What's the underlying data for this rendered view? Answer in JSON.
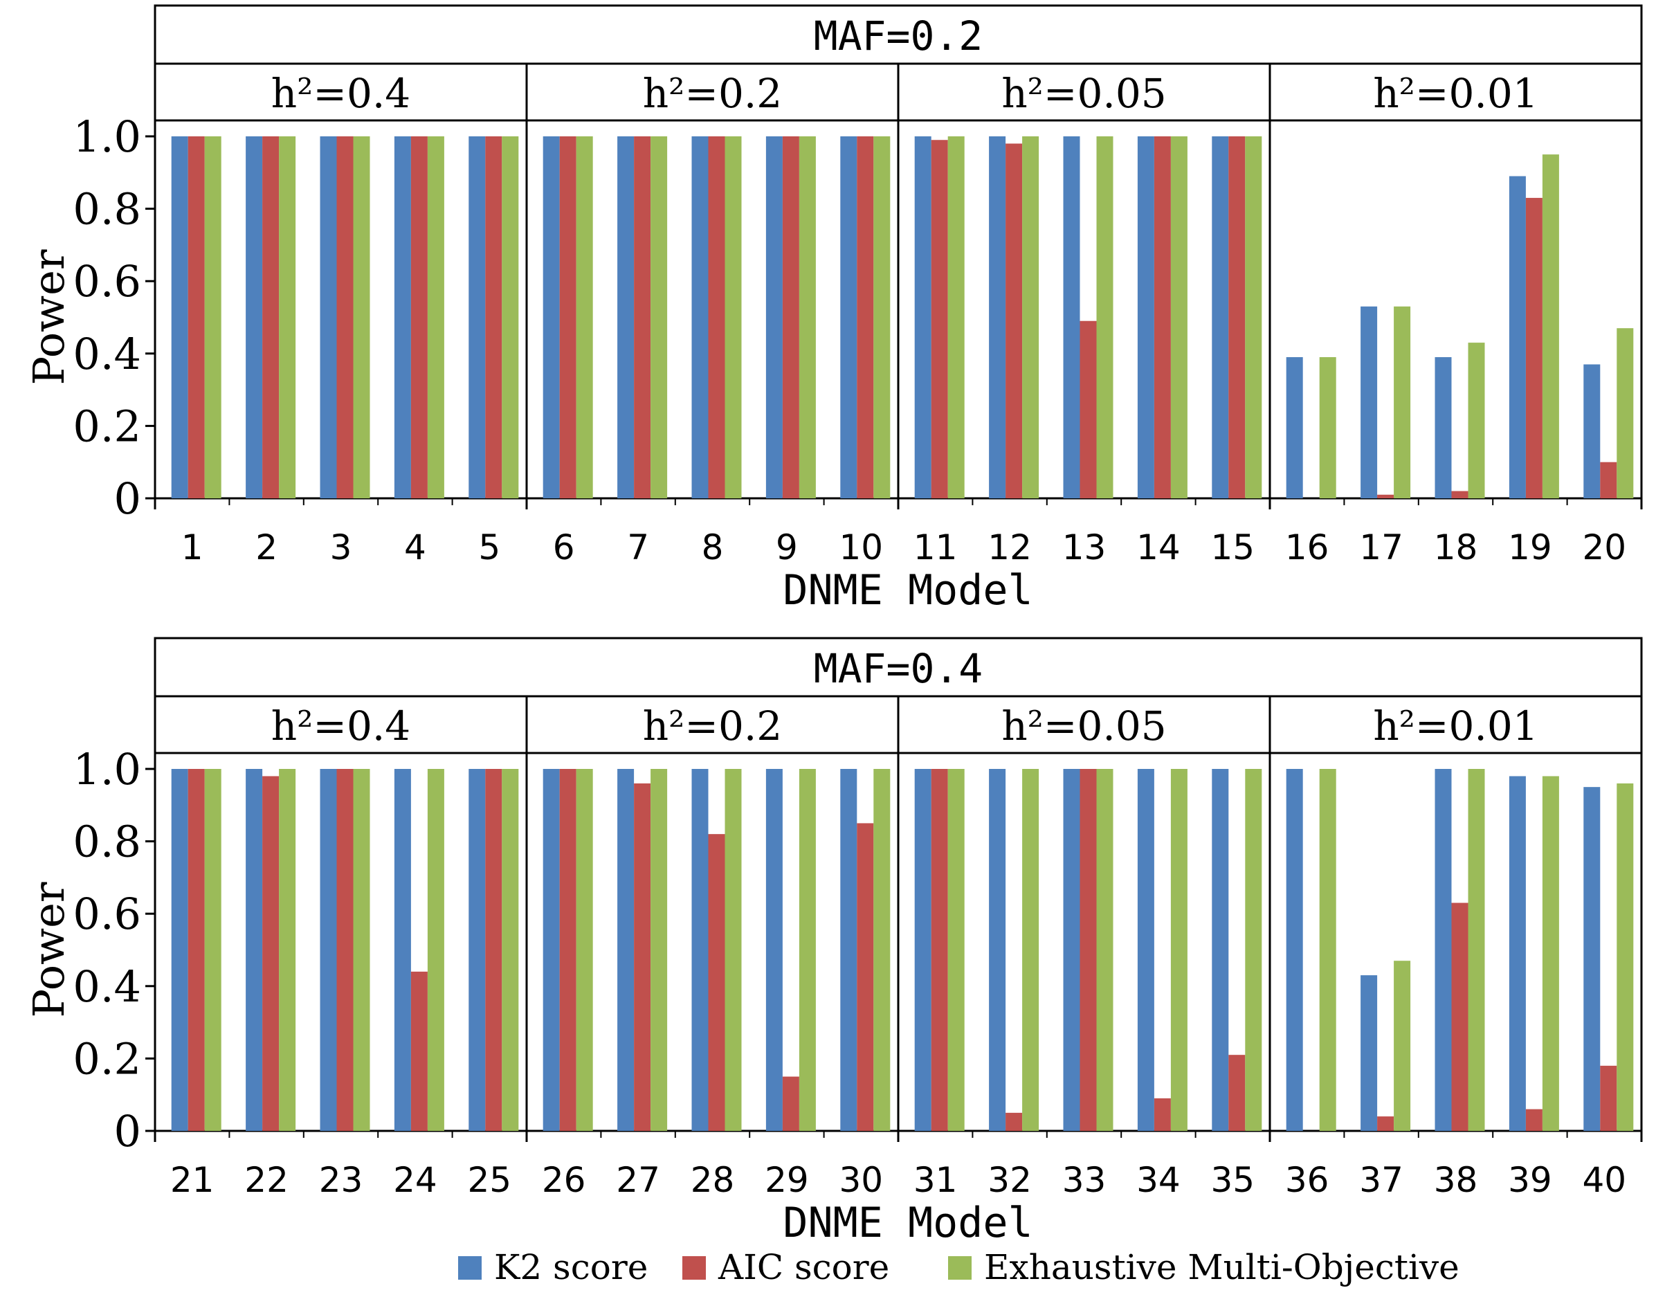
{
  "colors": {
    "k2": "#4f81bd",
    "aic": "#c0504d",
    "emo": "#9bbb59",
    "frame": "#000000",
    "background": "#ffffff"
  },
  "legend": {
    "position": "bottom-center",
    "items": [
      "K2 score",
      "AIC score",
      "Exhaustive Multi-Objective"
    ]
  },
  "chart_data": [
    {
      "type": "bar",
      "title": "MAF=0.2",
      "xlabel": "DNME Model",
      "ylabel": "Power",
      "ylim": [
        0,
        1
      ],
      "yticks": [
        "0",
        "0.2",
        "0.4",
        "0.6",
        "0.8",
        "1.0"
      ],
      "facets": [
        "h²=0.4",
        "h²=0.2",
        "h²=0.05",
        "h²=0.01"
      ],
      "categories": [
        "1",
        "2",
        "3",
        "4",
        "5",
        "6",
        "7",
        "8",
        "9",
        "10",
        "11",
        "12",
        "13",
        "14",
        "15",
        "16",
        "17",
        "18",
        "19",
        "20"
      ],
      "series": [
        {
          "name": "K2 score",
          "values": [
            1,
            1,
            1,
            1,
            1,
            1,
            1,
            1,
            1,
            1,
            1,
            1,
            1,
            1,
            1,
            0.39,
            0.53,
            0.39,
            0.89,
            0.37
          ]
        },
        {
          "name": "AIC score",
          "values": [
            1,
            1,
            1,
            1,
            1,
            1,
            1,
            1,
            1,
            1,
            0.99,
            0.98,
            0.49,
            1,
            1,
            0,
            0.01,
            0.02,
            0.83,
            0.1
          ]
        },
        {
          "name": "Exhaustive Multi-Objective",
          "values": [
            1,
            1,
            1,
            1,
            1,
            1,
            1,
            1,
            1,
            1,
            1,
            1,
            1,
            1,
            1,
            0.39,
            0.53,
            0.43,
            0.95,
            0.47
          ]
        }
      ]
    },
    {
      "type": "bar",
      "title": "MAF=0.4",
      "xlabel": "DNME Model",
      "ylabel": "Power",
      "ylim": [
        0,
        1
      ],
      "yticks": [
        "0",
        "0.2",
        "0.4",
        "0.6",
        "0.8",
        "1.0"
      ],
      "facets": [
        "h²=0.4",
        "h²=0.2",
        "h²=0.05",
        "h²=0.01"
      ],
      "categories": [
        "21",
        "22",
        "23",
        "24",
        "25",
        "26",
        "27",
        "28",
        "29",
        "30",
        "31",
        "32",
        "33",
        "34",
        "35",
        "36",
        "37",
        "38",
        "39",
        "40"
      ],
      "series": [
        {
          "name": "K2 score",
          "values": [
            1,
            1,
            1,
            1,
            1,
            1,
            1,
            1,
            1,
            1,
            1,
            1,
            1,
            1,
            1,
            1,
            0.43,
            1,
            0.98,
            0.95
          ]
        },
        {
          "name": "AIC score",
          "values": [
            1,
            0.98,
            1,
            0.44,
            1,
            1,
            0.96,
            0.82,
            0.15,
            0.85,
            1,
            0.05,
            1,
            0.09,
            0.21,
            0,
            0.04,
            0.63,
            0.06,
            0.18
          ]
        },
        {
          "name": "Exhaustive Multi-Objective",
          "values": [
            1,
            1,
            1,
            1,
            1,
            1,
            1,
            1,
            1,
            1,
            1,
            1,
            1,
            1,
            1,
            1,
            0.47,
            1,
            0.98,
            0.96
          ]
        }
      ]
    }
  ]
}
